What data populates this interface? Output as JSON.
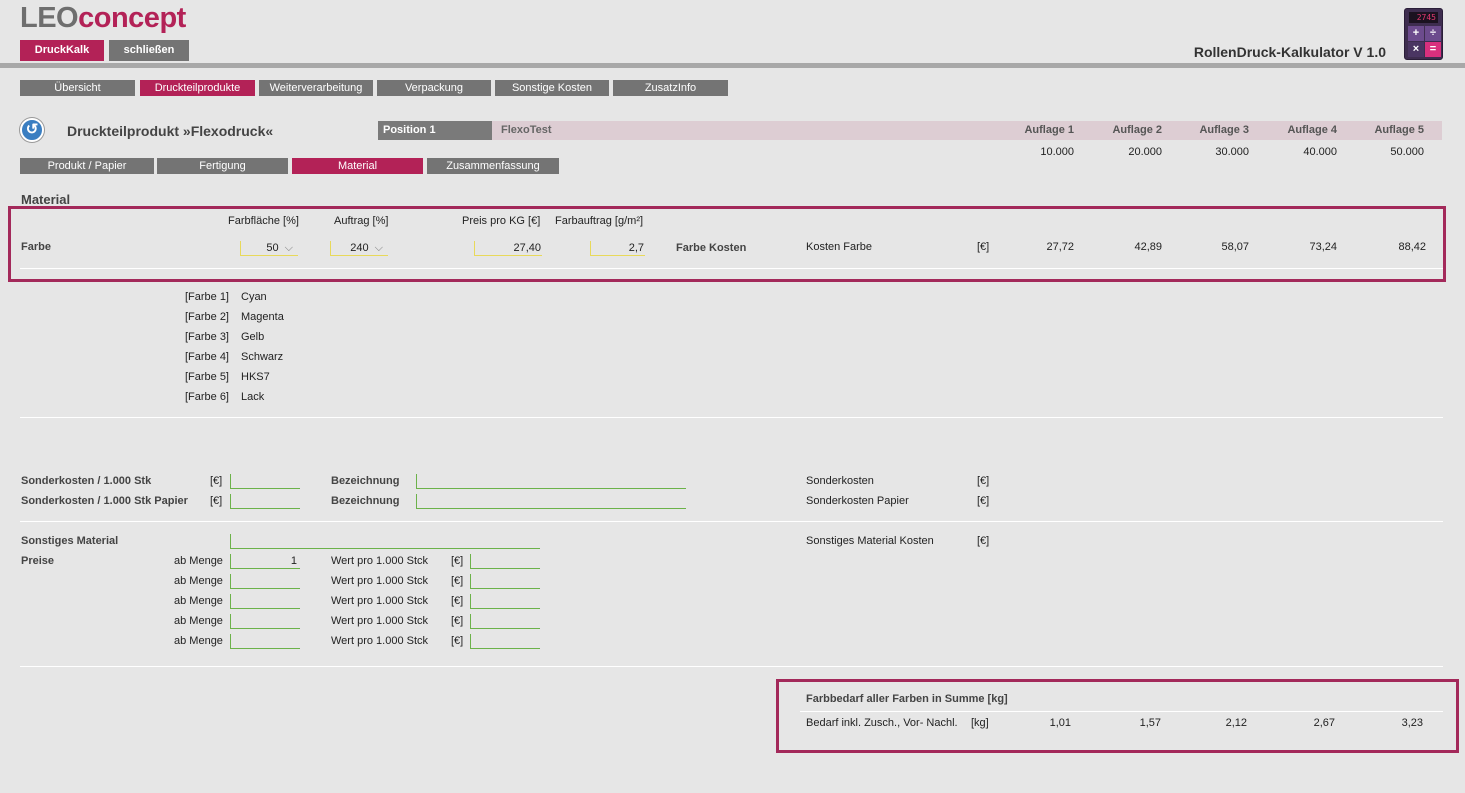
{
  "logo": {
    "part1": "LEO",
    "part2": "concept"
  },
  "top_buttons": {
    "druckkalk": "DruckKalk",
    "close": "schließen"
  },
  "app_title": "RollenDruck-Kalkulator V 1.0",
  "calc_display": "2745",
  "calc_keys": [
    "+",
    "÷",
    "×",
    "="
  ],
  "main_tabs": [
    "Übersicht",
    "Druckteilprodukte",
    "Weiterverarbeitung",
    "Verpackung",
    "Sonstige Kosten",
    "ZusatzInfo"
  ],
  "product_title": "Druckteilprodukt »Flexodruck«",
  "position": {
    "label": "Position 1",
    "name": "FlexoTest"
  },
  "auflagen": {
    "labels": [
      "Auflage 1",
      "Auflage 2",
      "Auflage 3",
      "Auflage 4",
      "Auflage 5"
    ],
    "values": [
      "10.000",
      "20.000",
      "30.000",
      "40.000",
      "50.000"
    ]
  },
  "sub_tabs": [
    "Produkt / Papier",
    "Fertigung",
    "Material",
    "Zusammenfassung"
  ],
  "section_title": "Material",
  "farbe": {
    "headers": {
      "flaeche": "Farbfläche [%]",
      "auftrag": "Auftrag [%]",
      "preis": "Preis pro KG [€]",
      "farbauftrag": "Farbauftrag [g/m²]"
    },
    "row_label": "Farbe",
    "flaeche_value": "50",
    "auftrag_value": "240",
    "preis_value": "27,40",
    "farbauftrag_value": "2,7",
    "kosten_label": "Farbe Kosten",
    "kosten_farbe_label": "Kosten Farbe",
    "unit": "[€]",
    "costs": [
      "27,72",
      "42,89",
      "58,07",
      "73,24",
      "88,42"
    ]
  },
  "farben_list": [
    {
      "code": "[Farbe 1]",
      "name": "Cyan"
    },
    {
      "code": "[Farbe 2]",
      "name": "Magenta"
    },
    {
      "code": "[Farbe 3]",
      "name": "Gelb"
    },
    {
      "code": "[Farbe 4]",
      "name": "Schwarz"
    },
    {
      "code": "[Farbe 5]",
      "name": "HKS7"
    },
    {
      "code": "[Farbe 6]",
      "name": "Lack"
    }
  ],
  "sonderkosten": {
    "row1_label": "Sonderkosten / 1.000 Stk",
    "row2_label": "Sonderkosten / 1.000 Stk Papier",
    "unit": "[€]",
    "bez_label": "Bezeichnung",
    "right1": "Sonderkosten",
    "right2": "Sonderkosten Papier"
  },
  "sonstiges": {
    "label": "Sonstiges Material",
    "preise_label": "Preise",
    "ab_menge": "ab Menge",
    "wert_label": "Wert pro 1.000 Stck",
    "unit": "[€]",
    "first_menge": "1",
    "kosten_label": "Sonstiges Material Kosten"
  },
  "farbbedarf": {
    "title": "Farbbedarf aller Farben in Summe [kg]",
    "row_label": "Bedarf inkl. Zusch., Vor- Nachl.",
    "unit": "[kg]",
    "values": [
      "1,01",
      "1,57",
      "2,12",
      "2,67",
      "3,23"
    ]
  }
}
